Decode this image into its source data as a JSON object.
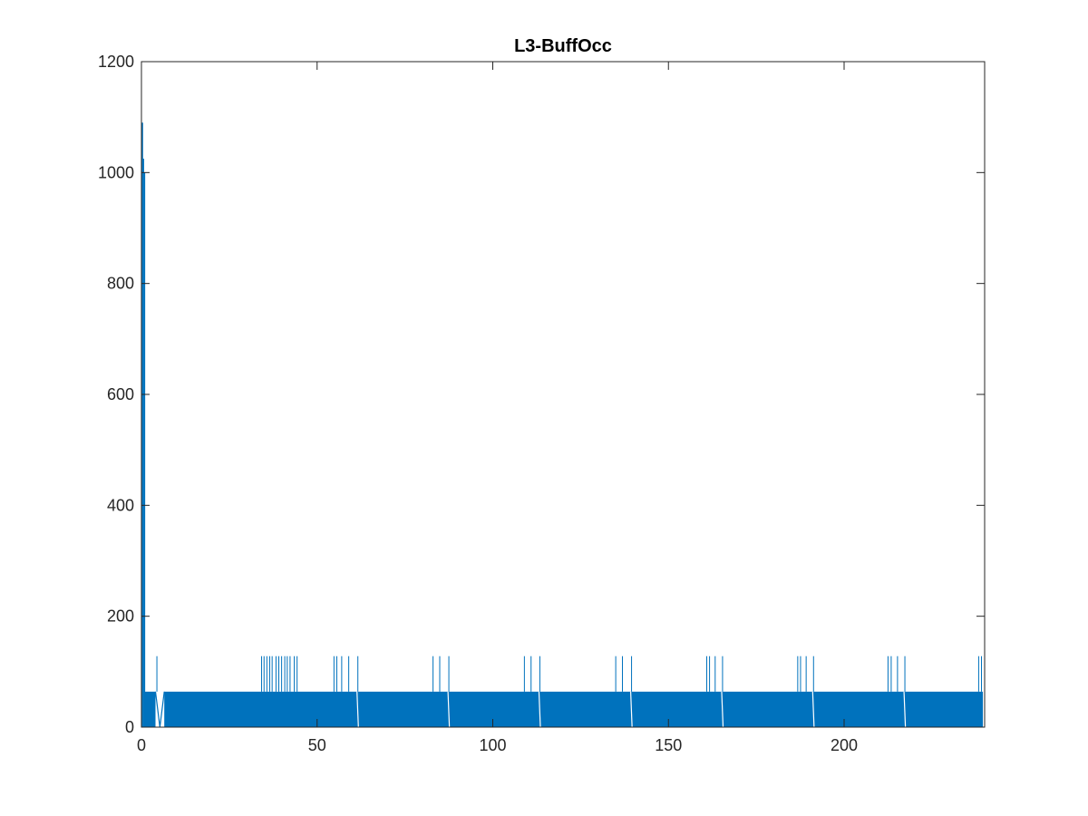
{
  "chart_data": {
    "type": "line",
    "title": "L3-BuffOcc",
    "xlabel": "",
    "ylabel": "",
    "xlim": [
      0,
      240
    ],
    "ylim": [
      0,
      1200
    ],
    "x_ticks": [
      0,
      50,
      100,
      150,
      200
    ],
    "y_ticks": [
      0,
      200,
      400,
      600,
      800,
      1000,
      1200
    ],
    "grid": false,
    "legend": "none",
    "series_color": "#0072BD",
    "series": [
      {
        "description_free": true,
        "baseline_band": {
          "x_start": 0.5,
          "x_end": 239.5,
          "low": 0,
          "high": 64
        },
        "initial_spikes": [
          {
            "x": 0.3,
            "y": 1090
          },
          {
            "x": 0.6,
            "y": 1025
          },
          {
            "x": 0.9,
            "y": 1000
          }
        ],
        "gaps_near_start": [
          {
            "x_start": 4.0,
            "x_end": 6.5
          }
        ],
        "spikes_128": [
          4.4,
          34.2,
          34.9,
          35.7,
          36.5,
          37.2,
          38.3,
          39.1,
          39.9,
          40.8,
          41.5,
          42.3,
          43.5,
          44.3,
          54.8,
          55.6,
          57.0,
          59.0,
          61.6,
          83.0,
          84.9,
          87.5,
          109.0,
          110.9,
          113.4,
          135.0,
          136.9,
          139.5,
          160.9,
          161.7,
          163.3,
          165.4,
          186.8,
          187.6,
          189.2,
          191.3,
          212.5,
          213.4,
          215.2,
          217.3,
          238.3,
          239.1
        ],
        "dips_to_zero": [
          61.5,
          87.4,
          113.3,
          139.4,
          165.3,
          191.2,
          217.2
        ]
      }
    ]
  }
}
